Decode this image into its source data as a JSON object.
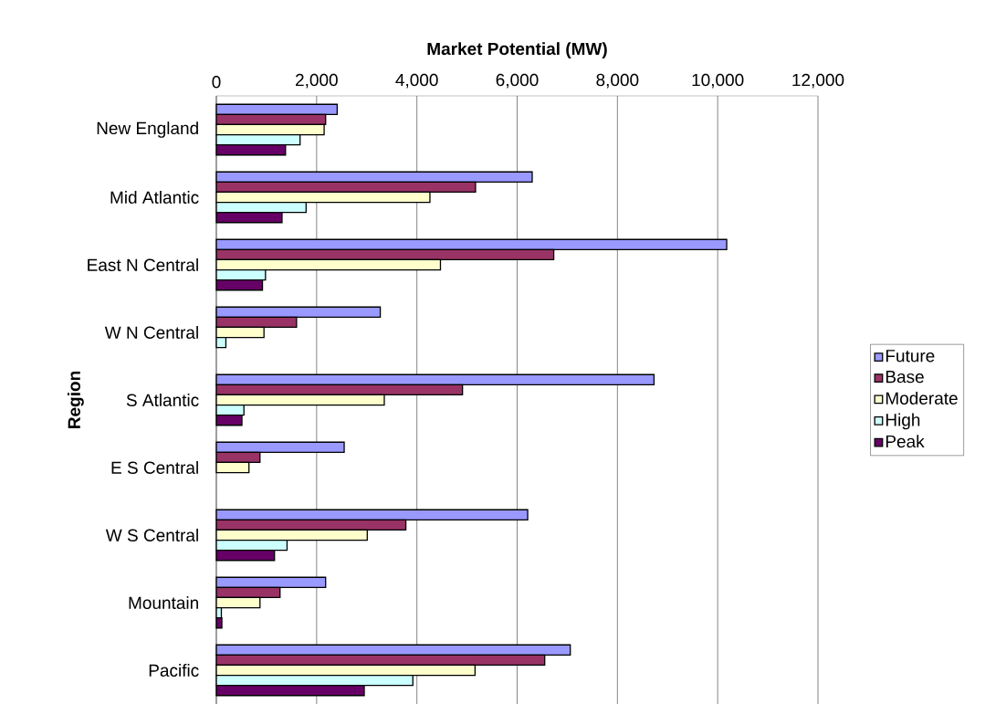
{
  "chart_data": {
    "type": "bar",
    "orientation": "horizontal",
    "xlabel": "Market Potential (MW)",
    "ylabel": "Region",
    "categories": [
      "New England",
      "Mid Atlantic",
      "East N Central",
      "W N Central",
      "S Atlantic",
      "E S Central",
      "W S Central",
      "Mountain",
      "Pacific"
    ],
    "series": [
      {
        "name": "Future",
        "color": "#9999ff",
        "values": [
          2410,
          6300,
          10180,
          3270,
          8730,
          2550,
          6210,
          2180,
          7060
        ]
      },
      {
        "name": "Base",
        "color": "#993366",
        "values": [
          2180,
          5170,
          6730,
          1600,
          4910,
          870,
          3780,
          1270,
          6550
        ]
      },
      {
        "name": "Moderate",
        "color": "#ffffcc",
        "values": [
          2150,
          4260,
          4470,
          950,
          3350,
          650,
          3010,
          870,
          5160
        ]
      },
      {
        "name": "High",
        "color": "#ccffff",
        "values": [
          1670,
          1790,
          980,
          190,
          550,
          null,
          1410,
          100,
          3920
        ]
      },
      {
        "name": "Peak",
        "color": "#660066",
        "values": [
          1380,
          1310,
          920,
          null,
          510,
          null,
          1160,
          110,
          2950
        ]
      }
    ],
    "xlim": [
      0,
      12000
    ],
    "xticks": [
      0,
      {
        "value": 2000,
        "label": "2,000"
      },
      {
        "value": 4000,
        "label": "4,000"
      },
      {
        "value": 6000,
        "label": "6,000"
      },
      {
        "value": 8000,
        "label": "8,000"
      },
      {
        "value": 10000,
        "label": "10,000"
      },
      {
        "value": 12000,
        "label": "12,000"
      }
    ],
    "grid": "x",
    "legend": "right"
  }
}
